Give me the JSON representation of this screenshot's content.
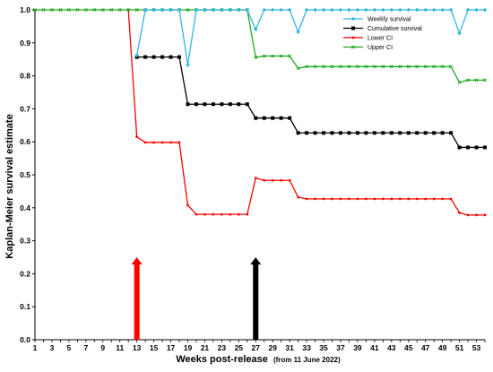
{
  "chart_data": {
    "type": "line",
    "xlabel": "Weeks post-release",
    "xlabel_note": "(from 11 June 2022)",
    "ylabel": "Kaplan-Meier survival estimate",
    "xlim": [
      1,
      54
    ],
    "ylim": [
      0,
      1.0
    ],
    "y_ticks": [
      "0.0",
      "0.1",
      "0.2",
      "0.3",
      "0.4",
      "0.5",
      "0.6",
      "0.7",
      "0.8",
      "0.9",
      "1.0"
    ],
    "x_ticks": [
      "1",
      "3",
      "5",
      "7",
      "9",
      "11",
      "13",
      "15",
      "17",
      "19",
      "21",
      "23",
      "25",
      "27",
      "29",
      "31",
      "33",
      "35",
      "37",
      "39",
      "41",
      "43",
      "45",
      "47",
      "49",
      "51",
      "53"
    ],
    "grid": false,
    "legend_position": "top-right",
    "series": [
      {
        "name": "Weekly survival",
        "color": "#33b5e5",
        "points": [
          [
            13,
            0.862
          ],
          [
            14,
            1.0
          ],
          [
            15,
            1.0
          ],
          [
            16,
            1.0
          ],
          [
            17,
            1.0
          ],
          [
            18,
            1.0
          ],
          [
            19,
            0.833
          ],
          [
            20,
            1.0
          ],
          [
            21,
            1.0
          ],
          [
            22,
            1.0
          ],
          [
            23,
            1.0
          ],
          [
            24,
            1.0
          ],
          [
            25,
            1.0
          ],
          [
            26,
            1.0
          ],
          [
            27,
            0.941
          ],
          [
            28,
            1.0
          ],
          [
            29,
            1.0
          ],
          [
            30,
            1.0
          ],
          [
            31,
            1.0
          ],
          [
            32,
            0.933
          ],
          [
            33,
            1.0
          ],
          [
            34,
            1.0
          ],
          [
            35,
            1.0
          ],
          [
            36,
            1.0
          ],
          [
            37,
            1.0
          ],
          [
            38,
            1.0
          ],
          [
            39,
            1.0
          ],
          [
            40,
            1.0
          ],
          [
            41,
            1.0
          ],
          [
            42,
            1.0
          ],
          [
            43,
            1.0
          ],
          [
            44,
            1.0
          ],
          [
            45,
            1.0
          ],
          [
            46,
            1.0
          ],
          [
            47,
            1.0
          ],
          [
            48,
            1.0
          ],
          [
            49,
            1.0
          ],
          [
            50,
            1.0
          ],
          [
            51,
            0.929
          ],
          [
            52,
            1.0
          ],
          [
            53,
            1.0
          ],
          [
            54,
            1.0
          ]
        ]
      },
      {
        "name": "Cumulative survival",
        "color": "#000000",
        "points": [
          [
            13,
            0.857
          ],
          [
            14,
            0.857
          ],
          [
            15,
            0.857
          ],
          [
            16,
            0.857
          ],
          [
            17,
            0.857
          ],
          [
            18,
            0.857
          ],
          [
            19,
            0.714
          ],
          [
            20,
            0.714
          ],
          [
            21,
            0.714
          ],
          [
            22,
            0.714
          ],
          [
            23,
            0.714
          ],
          [
            24,
            0.714
          ],
          [
            25,
            0.714
          ],
          [
            26,
            0.714
          ],
          [
            27,
            0.672
          ],
          [
            28,
            0.672
          ],
          [
            29,
            0.672
          ],
          [
            30,
            0.672
          ],
          [
            31,
            0.672
          ],
          [
            32,
            0.627
          ],
          [
            33,
            0.627
          ],
          [
            34,
            0.627
          ],
          [
            35,
            0.627
          ],
          [
            36,
            0.627
          ],
          [
            37,
            0.627
          ],
          [
            38,
            0.627
          ],
          [
            39,
            0.627
          ],
          [
            40,
            0.627
          ],
          [
            41,
            0.627
          ],
          [
            42,
            0.627
          ],
          [
            43,
            0.627
          ],
          [
            44,
            0.627
          ],
          [
            45,
            0.627
          ],
          [
            46,
            0.627
          ],
          [
            47,
            0.627
          ],
          [
            48,
            0.627
          ],
          [
            49,
            0.627
          ],
          [
            50,
            0.627
          ],
          [
            51,
            0.583
          ],
          [
            52,
            0.583
          ],
          [
            53,
            0.583
          ],
          [
            54,
            0.583
          ]
        ]
      },
      {
        "name": "Lower CI",
        "color": "#ff0000",
        "points": [
          [
            12,
            1.0
          ],
          [
            13,
            0.615
          ],
          [
            14,
            0.598
          ],
          [
            15,
            0.598
          ],
          [
            16,
            0.598
          ],
          [
            17,
            0.598
          ],
          [
            18,
            0.598
          ],
          [
            19,
            0.408
          ],
          [
            20,
            0.38
          ],
          [
            21,
            0.38
          ],
          [
            22,
            0.38
          ],
          [
            23,
            0.38
          ],
          [
            24,
            0.38
          ],
          [
            25,
            0.38
          ],
          [
            26,
            0.38
          ],
          [
            27,
            0.49
          ],
          [
            28,
            0.483
          ],
          [
            29,
            0.483
          ],
          [
            30,
            0.483
          ],
          [
            31,
            0.483
          ],
          [
            32,
            0.432
          ],
          [
            33,
            0.427
          ],
          [
            34,
            0.427
          ],
          [
            35,
            0.427
          ],
          [
            36,
            0.427
          ],
          [
            37,
            0.427
          ],
          [
            38,
            0.427
          ],
          [
            39,
            0.427
          ],
          [
            40,
            0.427
          ],
          [
            41,
            0.427
          ],
          [
            42,
            0.427
          ],
          [
            43,
            0.427
          ],
          [
            44,
            0.427
          ],
          [
            45,
            0.427
          ],
          [
            46,
            0.427
          ],
          [
            47,
            0.427
          ],
          [
            48,
            0.427
          ],
          [
            49,
            0.427
          ],
          [
            50,
            0.427
          ],
          [
            51,
            0.385
          ],
          [
            52,
            0.378
          ],
          [
            53,
            0.378
          ],
          [
            54,
            0.378
          ]
        ]
      },
      {
        "name": "Upper CI",
        "color": "#22aa22",
        "points": [
          [
            1,
            1.0
          ],
          [
            2,
            1.0
          ],
          [
            3,
            1.0
          ],
          [
            4,
            1.0
          ],
          [
            5,
            1.0
          ],
          [
            6,
            1.0
          ],
          [
            7,
            1.0
          ],
          [
            8,
            1.0
          ],
          [
            9,
            1.0
          ],
          [
            10,
            1.0
          ],
          [
            11,
            1.0
          ],
          [
            12,
            1.0
          ],
          [
            13,
            1.0
          ],
          [
            14,
            1.0
          ],
          [
            15,
            1.0
          ],
          [
            16,
            1.0
          ],
          [
            17,
            1.0
          ],
          [
            18,
            1.0
          ],
          [
            19,
            1.0
          ],
          [
            20,
            1.0
          ],
          [
            21,
            1.0
          ],
          [
            22,
            1.0
          ],
          [
            23,
            1.0
          ],
          [
            24,
            1.0
          ],
          [
            25,
            1.0
          ],
          [
            26,
            1.0
          ],
          [
            27,
            0.856
          ],
          [
            28,
            0.86
          ],
          [
            29,
            0.86
          ],
          [
            30,
            0.86
          ],
          [
            31,
            0.86
          ],
          [
            32,
            0.823
          ],
          [
            33,
            0.828
          ],
          [
            34,
            0.828
          ],
          [
            35,
            0.828
          ],
          [
            36,
            0.828
          ],
          [
            37,
            0.828
          ],
          [
            38,
            0.828
          ],
          [
            39,
            0.828
          ],
          [
            40,
            0.828
          ],
          [
            41,
            0.828
          ],
          [
            42,
            0.828
          ],
          [
            43,
            0.828
          ],
          [
            44,
            0.828
          ],
          [
            45,
            0.828
          ],
          [
            46,
            0.828
          ],
          [
            47,
            0.828
          ],
          [
            48,
            0.828
          ],
          [
            49,
            0.828
          ],
          [
            50,
            0.828
          ],
          [
            51,
            0.78
          ],
          [
            52,
            0.787
          ],
          [
            53,
            0.787
          ],
          [
            54,
            0.787
          ]
        ]
      }
    ],
    "annotations": [
      {
        "type": "arrow",
        "x": 13,
        "y_from": 0.0,
        "y_to": 0.25,
        "color": "#ff0000"
      },
      {
        "type": "arrow",
        "x": 27,
        "y_from": 0.0,
        "y_to": 0.25,
        "color": "#000000"
      }
    ]
  }
}
